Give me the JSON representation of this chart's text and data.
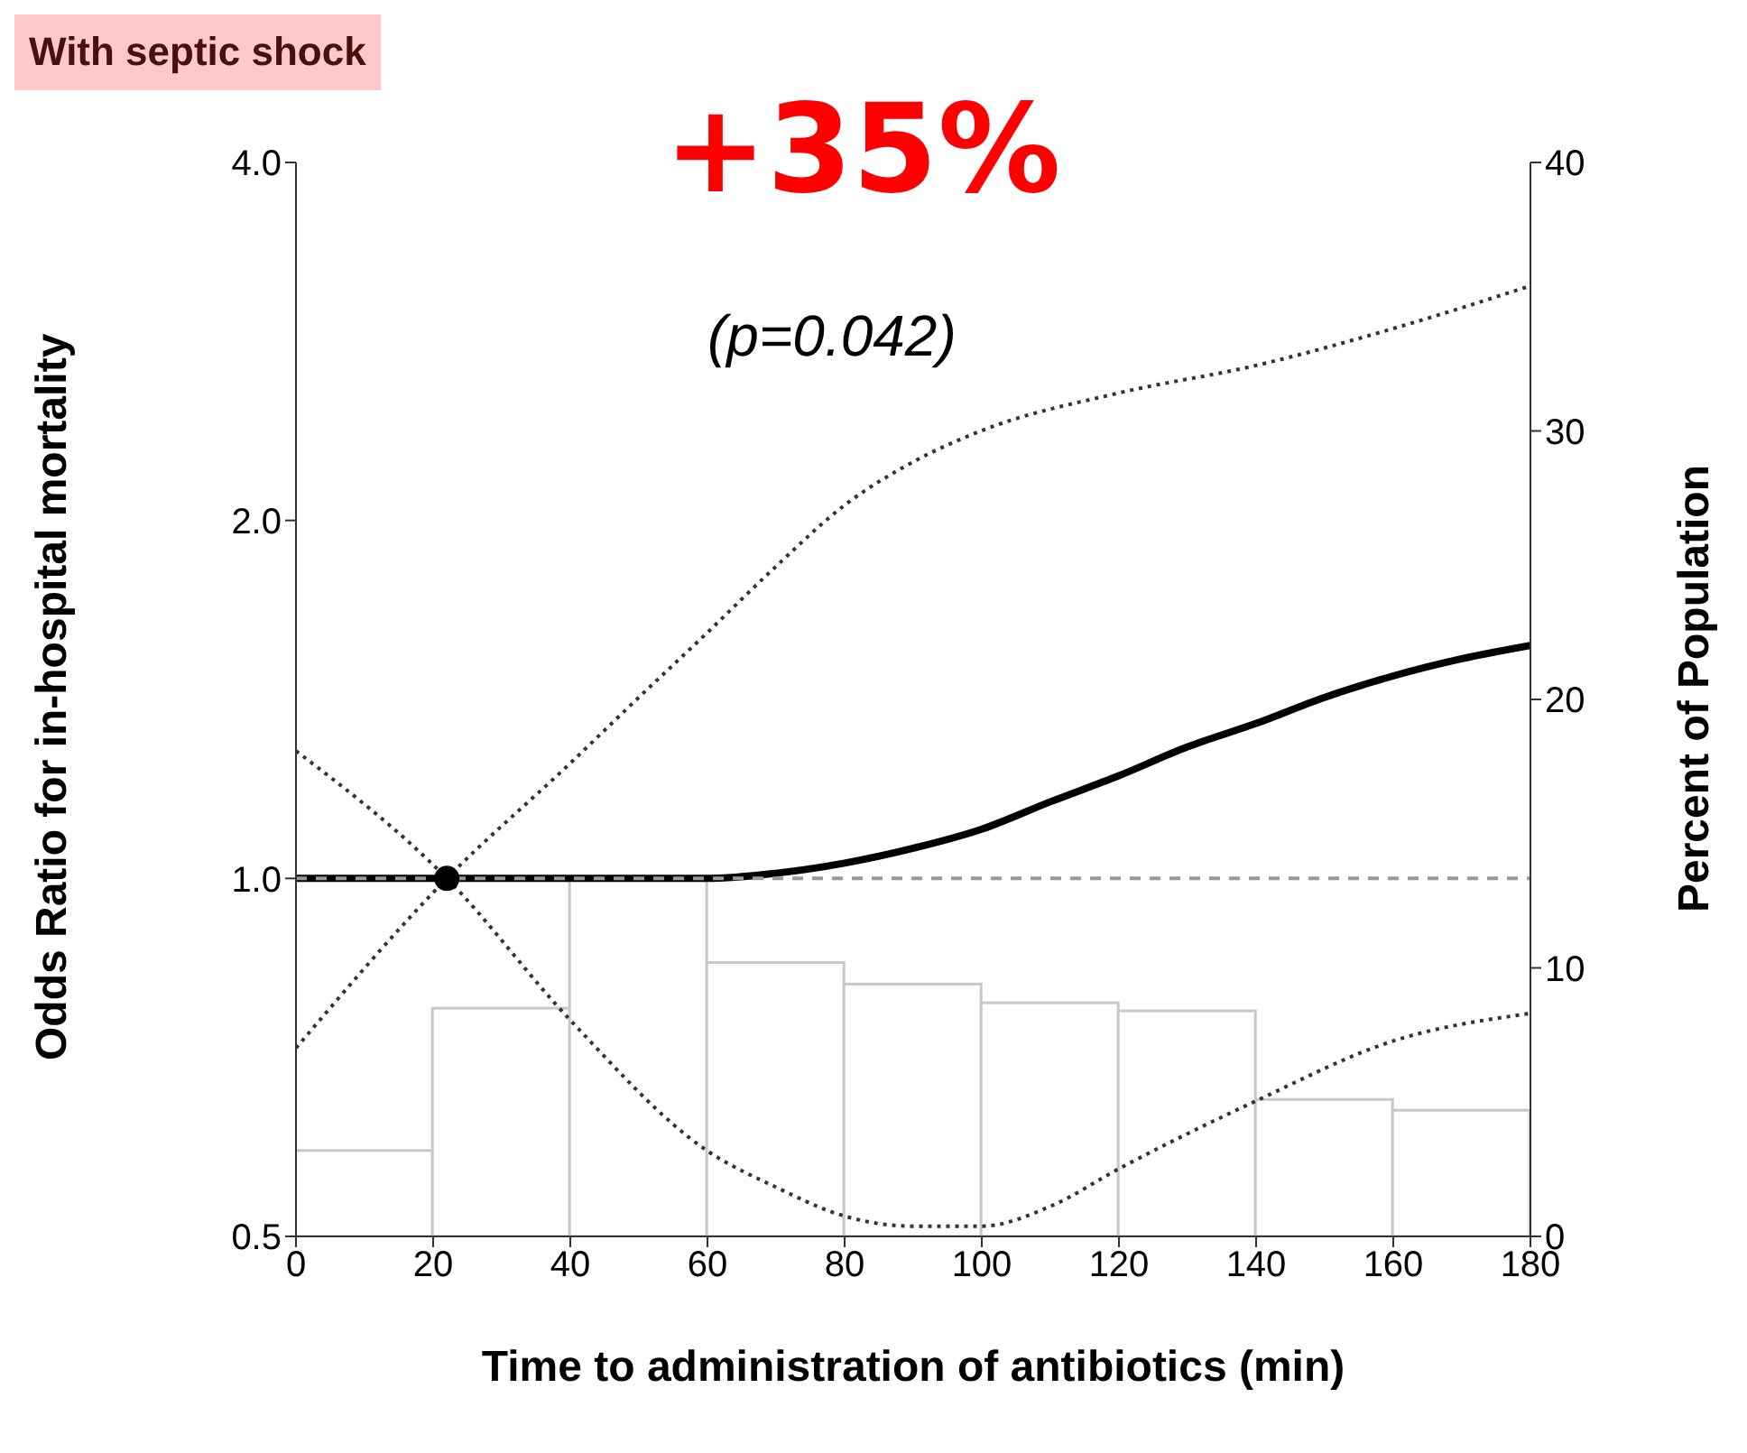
{
  "chart_data": {
    "type": "line",
    "title": "With septic shock",
    "xlabel": "Time to administration of antibiotics (min)",
    "ylabel": "Odds Ratio for in-hospital mortality",
    "y2label": "Percent of Population",
    "annotations": [
      "+35%",
      "(p=0.042)"
    ],
    "xlim": [
      0,
      180
    ],
    "xticks": [
      0,
      20,
      40,
      60,
      80,
      100,
      120,
      140,
      160,
      180
    ],
    "ylim": [
      0.5,
      4
    ],
    "yticks": [
      {
        "value": 0.5,
        "label": "0.5"
      },
      {
        "value": 1,
        "label": "1.0"
      },
      {
        "value": 2,
        "label": "2.0"
      },
      {
        "value": 4,
        "label": "4.0"
      }
    ],
    "y2lim": [
      0,
      40
    ],
    "y2ticks": [
      0,
      10,
      20,
      30,
      40
    ],
    "log": "y",
    "grid": false,
    "ref_lines": [
      {
        "axis": "y",
        "value": 1,
        "color": "#999999",
        "line_style": "dashed"
      }
    ],
    "series": [
      {
        "type": "histogram",
        "axis": "y2",
        "color": "#ffffff",
        "bins": [
          0,
          20,
          40,
          60,
          80,
          100,
          120,
          140,
          160,
          180
        ],
        "values": [
          3.2,
          8.5,
          13.3,
          10.2,
          9.4,
          8.7,
          8.4,
          5.1,
          4.7
        ]
      },
      {
        "type": "line",
        "color": "#000000",
        "line_style": "solid",
        "x": [
          0,
          20,
          40,
          60,
          70,
          80,
          90,
          100,
          110,
          120,
          130,
          140,
          150,
          160,
          170,
          180
        ],
        "values": [
          1.0,
          1.0,
          1.0,
          1.0,
          1.01,
          1.03,
          1.06,
          1.1,
          1.16,
          1.22,
          1.29,
          1.35,
          1.42,
          1.48,
          1.53,
          1.57
        ]
      },
      {
        "type": "line",
        "color": "#333333",
        "line_style": "dotted",
        "x": [
          0,
          22,
          40,
          50,
          60,
          70,
          80,
          90,
          100,
          120,
          140,
          160,
          180
        ],
        "values": [
          0.72,
          1.0,
          1.25,
          1.42,
          1.61,
          1.83,
          2.06,
          2.24,
          2.38,
          2.56,
          2.7,
          2.9,
          3.15
        ]
      },
      {
        "type": "line",
        "color": "#333333",
        "line_style": "dotted",
        "x": [
          0,
          22,
          40,
          60,
          70,
          80,
          90,
          100,
          110,
          120,
          140,
          160,
          180
        ],
        "values": [
          1.28,
          1.0,
          0.76,
          0.59,
          0.55,
          0.52,
          0.51,
          0.51,
          0.53,
          0.57,
          0.65,
          0.73,
          0.77
        ]
      },
      {
        "type": "scatter",
        "color": "#000000",
        "marker": "circle",
        "x": [
          22
        ],
        "values": [
          1.0
        ]
      }
    ]
  }
}
